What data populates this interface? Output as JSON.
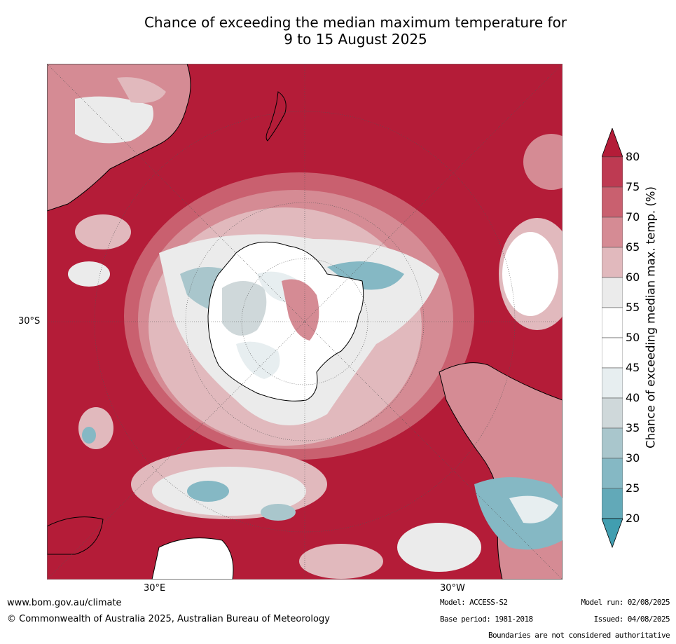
{
  "title": {
    "line1": "Chance of exceeding the median maximum temperature for",
    "line2": "9 to 15 August 2025"
  },
  "map": {
    "graticule_labels": {
      "lat_30s": "30°S",
      "lon_30e": "30°E",
      "lon_30w": "30°W"
    },
    "colors": {
      "ocean_high": "#b41c38",
      "land_outline": "#000000"
    }
  },
  "colorbar": {
    "label": "Chance of exceeding median max. temp. (%)",
    "ticks": [
      "80",
      "75",
      "70",
      "65",
      "60",
      "55",
      "50",
      "45",
      "40",
      "35",
      "30",
      "25",
      "20"
    ],
    "band_colors": [
      "#b41c38",
      "#be3a52",
      "#c9606f",
      "#d58b94",
      "#e1b9bd",
      "#ebebeb",
      "#ffffff",
      "#ffffff",
      "#e7eef0",
      "#cfd8da",
      "#a9c6cc",
      "#85b8c4",
      "#62a9b8",
      "#419eb0"
    ]
  },
  "footer": {
    "url": "www.bom.gov.au/climate",
    "copyright": "© Commonwealth of Australia 2025, Australian Bureau of Meteorology",
    "model": "Model: ACCESS-S2",
    "base_period": "Base period: 1981-2018",
    "model_run": "Model run: 02/08/2025",
    "issued": "Issued: 04/08/2025",
    "disclaimer": "Boundaries are not considered authoritative"
  }
}
